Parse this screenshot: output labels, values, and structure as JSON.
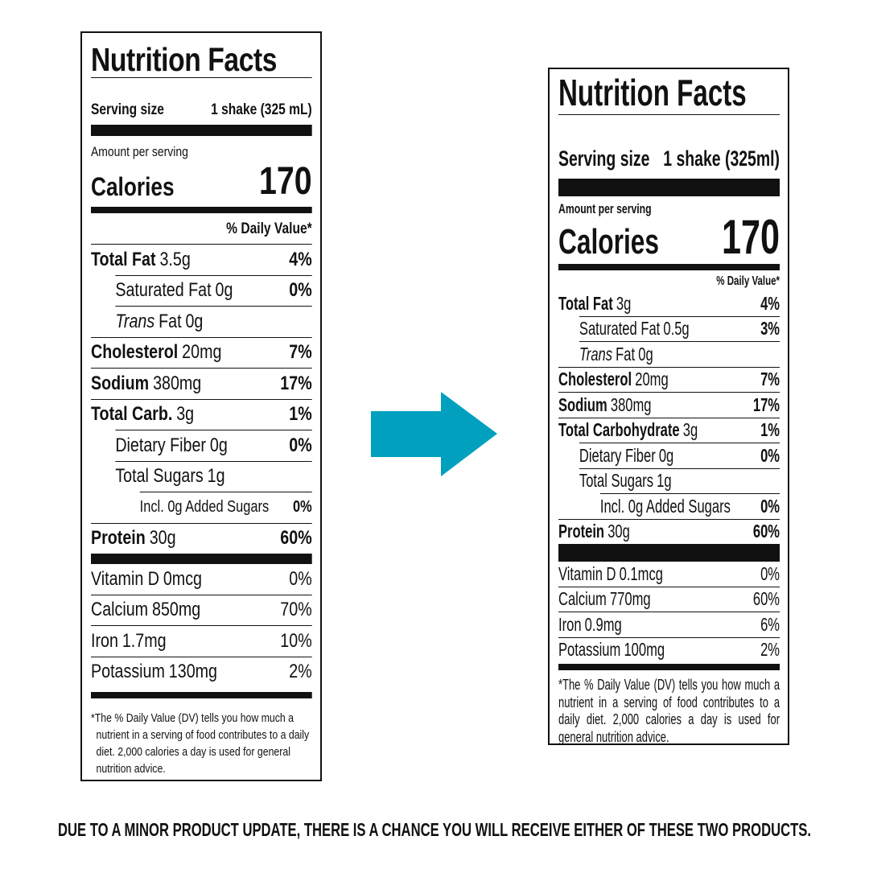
{
  "labels": [
    {
      "title": "Nutrition Facts",
      "serving_label": "Serving size",
      "serving_value": "1 shake (325 mL)",
      "amount_label": "Amount per serving",
      "calories_label": "Calories",
      "calories_value": 170,
      "dv_header": "% Daily Value*",
      "nutrients": [
        {
          "name": "Total Fat",
          "amount": "3.5g",
          "dv": "4%",
          "sub": [
            {
              "name": "Saturated Fat",
              "amount": "0g",
              "dv": "0%"
            },
            {
              "name_italic": "Trans",
              "name": "Fat",
              "amount": "0g"
            }
          ]
        },
        {
          "name": "Cholesterol",
          "amount": "20mg",
          "dv": "7%"
        },
        {
          "name": "Sodium",
          "amount": "380mg",
          "dv": "17%"
        },
        {
          "name": "Total Carb.",
          "amount": "3g",
          "dv": "1%",
          "sub": [
            {
              "name": "Dietary Fiber",
              "amount": "0g",
              "dv": "0%"
            },
            {
              "name": "Total Sugars",
              "amount": "1g",
              "sub": [
                {
                  "name": "Incl. 0g Added Sugars",
                  "dv": "0%"
                }
              ]
            }
          ]
        },
        {
          "name": "Protein",
          "amount": "30g",
          "dv": "60%"
        }
      ],
      "vitamins": [
        {
          "name": "Vitamin D",
          "amount": "0mcg",
          "dv": "0%"
        },
        {
          "name": "Calcium",
          "amount": "850mg",
          "dv": "70%"
        },
        {
          "name": "Iron",
          "amount": "1.7mg",
          "dv": "10%"
        },
        {
          "name": "Potassium",
          "amount": "130mg",
          "dv": "2%"
        }
      ],
      "footnote": "*The % Daily Value (DV) tells you how much a nutrient in a serving of food contributes to a daily diet. 2,000 calories a day is used for general nutrition advice."
    },
    {
      "title": "Nutrition Facts",
      "serving_label": "Serving size",
      "serving_value": "1 shake (325ml)",
      "amount_label": "Amount per serving",
      "calories_label": "Calories",
      "calories_value": 170,
      "dv_header": "% Daily Value*",
      "nutrients": [
        {
          "name": "Total Fat",
          "amount": "3g",
          "dv": "4%",
          "sub": [
            {
              "name": "Saturated Fat",
              "amount": "0.5g",
              "dv": "3%"
            },
            {
              "name_italic": "Trans",
              "name": "Fat",
              "amount": "0g"
            }
          ]
        },
        {
          "name": "Cholesterol",
          "amount": "20mg",
          "dv": "7%"
        },
        {
          "name": "Sodium",
          "amount": "380mg",
          "dv": "17%"
        },
        {
          "name": "Total Carbohydrate",
          "amount": "3g",
          "dv": "1%",
          "sub": [
            {
              "name": "Dietary Fiber",
              "amount": "0g",
              "dv": "0%"
            },
            {
              "name": "Total Sugars",
              "amount": "1g",
              "sub": [
                {
                  "name": "Incl. 0g Added Sugars",
                  "dv": "0%"
                }
              ]
            }
          ]
        },
        {
          "name": "Protein",
          "amount": "30g",
          "dv": "60%"
        }
      ],
      "vitamins": [
        {
          "name": "Vitamin D",
          "amount": "0.1mcg",
          "dv": "0%"
        },
        {
          "name": "Calcium",
          "amount": "770mg",
          "dv": "60%"
        },
        {
          "name": "Iron",
          "amount": "0.9mg",
          "dv": "6%"
        },
        {
          "name": "Potassium",
          "amount": "100mg",
          "dv": "2%"
        }
      ],
      "footnote": "*The % Daily Value (DV) tells you how much a nutrient in a serving of food contributes to a daily diet. 2,000 calories a day is used for general nutrition advice."
    }
  ],
  "notice": "DUE TO A MINOR PRODUCT UPDATE, THERE IS A CHANCE YOU WILL RECEIVE EITHER OF THESE TWO PRODUCTS."
}
